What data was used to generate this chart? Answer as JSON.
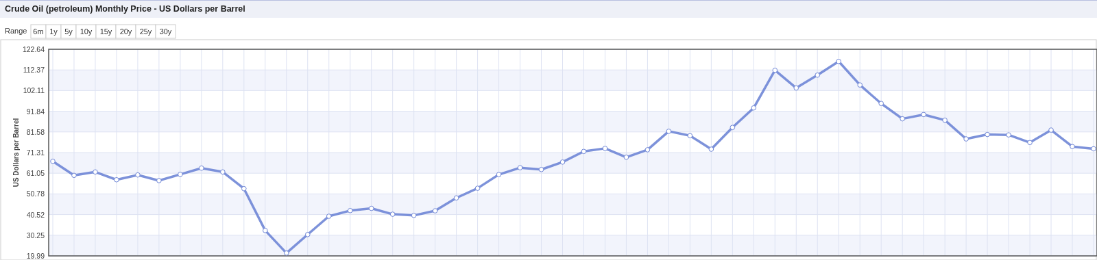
{
  "chart_data": {
    "type": "line",
    "title": "Crude Oil (petroleum) Monthly Price - US Dollars per Barrel",
    "ylabel": "US Dollars per Barrel",
    "annotations": [
      "Range",
      "6m",
      "1y",
      "5y",
      "10y",
      "15y",
      "20y",
      "25y",
      "30y"
    ],
    "categories": [
      null,
      null,
      null,
      null,
      null,
      null,
      null,
      null,
      null,
      null,
      null,
      null,
      null,
      null,
      null,
      null,
      null,
      null,
      null,
      null,
      null,
      null,
      null,
      null,
      null,
      null,
      null,
      null,
      null,
      null,
      null,
      null,
      null,
      null,
      null,
      null,
      null,
      null,
      null,
      null,
      null,
      null,
      null,
      null,
      null,
      null,
      null,
      null,
      null,
      null
    ],
    "series": [
      {
        "color": "#6f86d6",
        "values": [
          67.0,
          60.0,
          61.7,
          57.8,
          60.2,
          57.4,
          60.5,
          63.6,
          61.7,
          53.4,
          32.6,
          21.4,
          30.6,
          39.7,
          42.5,
          43.6,
          40.7,
          40.1,
          42.4,
          48.8,
          53.6,
          60.4,
          63.8,
          62.9,
          66.6,
          71.9,
          73.4,
          69.0,
          72.7,
          81.9,
          79.7,
          73.0,
          83.8,
          93.5,
          112.2,
          103.4,
          109.8,
          116.6,
          104.9,
          95.7,
          88.1,
          90.2,
          87.4,
          78.1,
          80.3,
          80.1,
          76.3,
          82.5,
          74.3,
          73.2
        ]
      }
    ],
    "ylim": [
      19.99,
      122.64
    ],
    "yticks": [
      19.99,
      30.25,
      40.52,
      50.78,
      61.05,
      71.31,
      81.58,
      91.84,
      102.11,
      112.37,
      122.64
    ],
    "grid": true,
    "marker": "circle",
    "line_style": "solid"
  }
}
